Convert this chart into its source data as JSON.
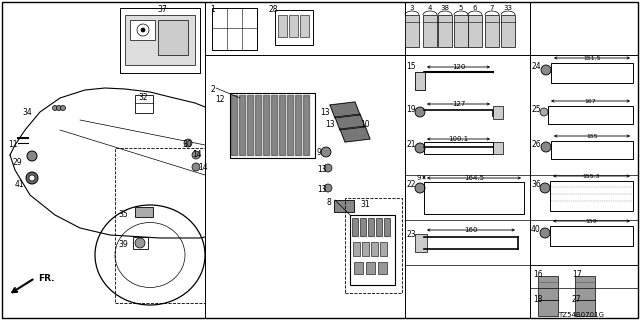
{
  "bg_color": "#ffffff",
  "line_color": "#000000",
  "figsize": [
    6.4,
    3.2
  ],
  "dpi": 100,
  "footer_text": "TZ54B0701G"
}
